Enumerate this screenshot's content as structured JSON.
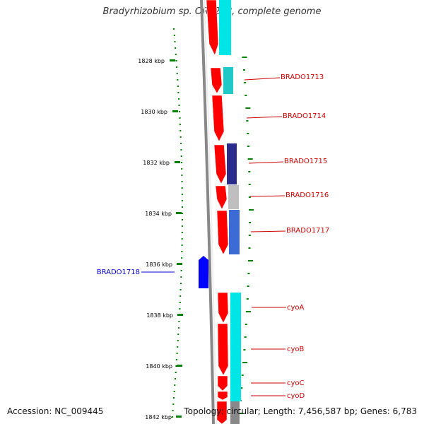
{
  "title": "Bradyrhizobium sp. ORS278, complete genome",
  "accession": "Accession: NC_009445",
  "summary": "Topology: circular; Length: 7,456,587 bp; Genes: 6,783",
  "colors": {
    "forward_cds": "#ff0000",
    "reverse_cds": "#0000ff",
    "cog_cyan": "#00e5e5",
    "cog_teal": "#20c8c8",
    "cog_navy": "#2b2b8c",
    "cog_gray": "#bfbfbf",
    "cog_blue": "#3c6bd6",
    "tick_green": "#008000",
    "label_red": "#cc0000",
    "label_blue": "#0000cc",
    "backbone": "#888888"
  },
  "scale_labels": [
    "1828 kbp",
    "1830 kbp",
    "1832 kbp",
    "1834 kbp",
    "1836 kbp",
    "1838 kbp",
    "1840 kbp",
    "1842 kbp"
  ],
  "gene_labels": [
    {
      "name": "BRADO1713",
      "strand": "+"
    },
    {
      "name": "BRADO1714",
      "strand": "+"
    },
    {
      "name": "BRADO1715",
      "strand": "+"
    },
    {
      "name": "BRADO1716",
      "strand": "+"
    },
    {
      "name": "BRADO1717",
      "strand": "+"
    },
    {
      "name": "BRADO1718",
      "strand": "-"
    },
    {
      "name": "cyoA",
      "strand": "+"
    },
    {
      "name": "cyoB",
      "strand": "+"
    },
    {
      "name": "cyoC",
      "strand": "+"
    },
    {
      "name": "cyoD",
      "strand": "+"
    }
  ]
}
